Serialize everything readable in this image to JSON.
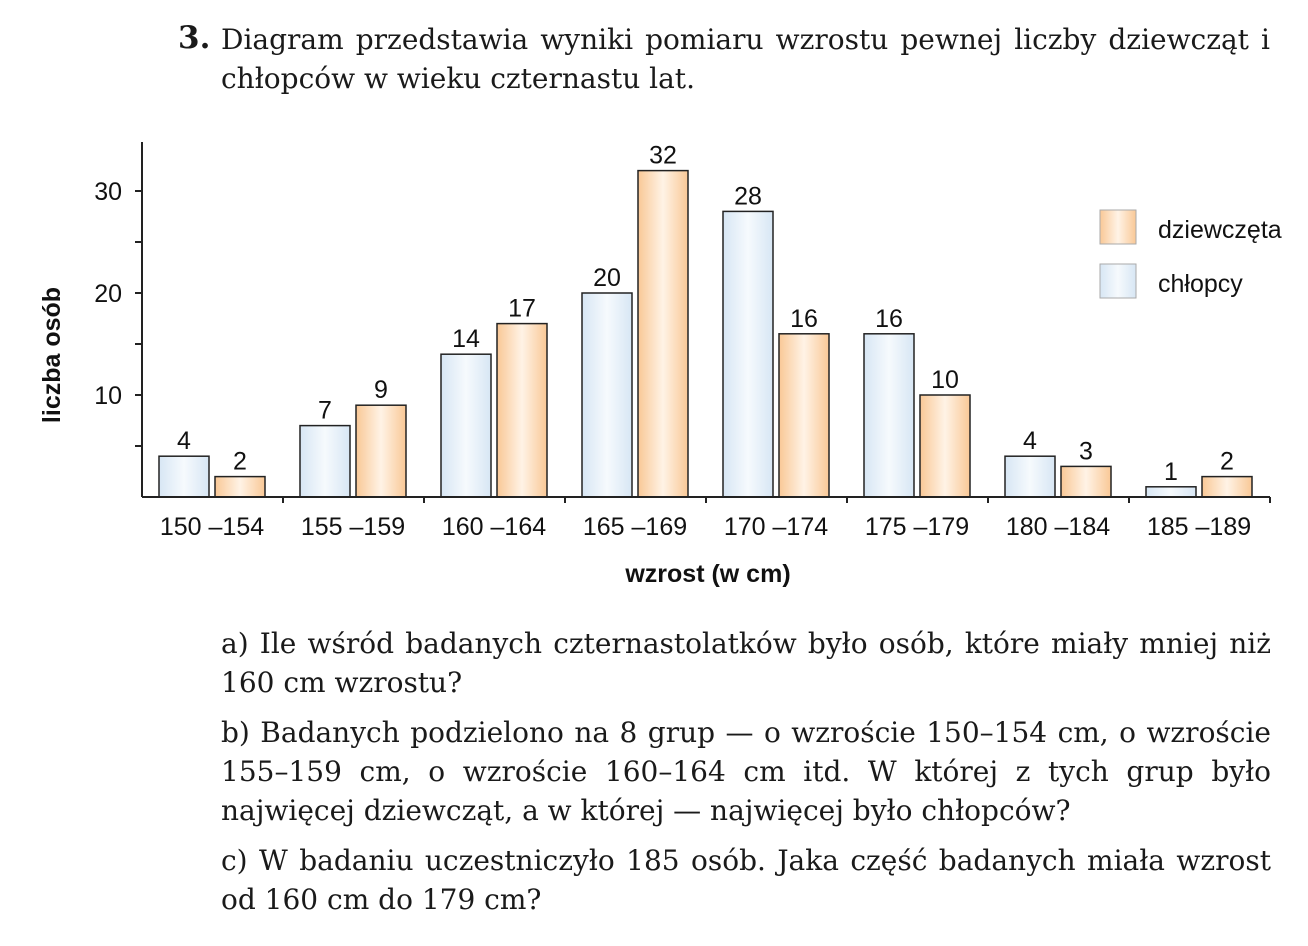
{
  "problem": {
    "number": "3.",
    "text": "Diagram przedstawia wyniki pomiaru wzrostu pewnej liczby dziewcząt i chłopców w wieku czternastu lat."
  },
  "chart_data": {
    "type": "bar",
    "xlabel": "wzrost (w cm)",
    "ylabel": "liczba osób",
    "ylim": [
      0,
      35
    ],
    "yticks": [
      10,
      20,
      30
    ],
    "categories": [
      "150 –154",
      "155 –159",
      "160 –164",
      "165 –169",
      "170 –174",
      "175 –179",
      "180 –184",
      "185 –189"
    ],
    "series": [
      {
        "name": "chłopcy",
        "values": [
          4,
          7,
          14,
          20,
          28,
          16,
          4,
          1
        ],
        "color": "#e3eef8"
      },
      {
        "name": "dziewczęta",
        "values": [
          2,
          9,
          17,
          32,
          16,
          10,
          3,
          2
        ],
        "color": "#fbd7b0"
      }
    ],
    "legend": "top-right",
    "legend_order": [
      "dziewczęta",
      "chłopcy"
    ],
    "grid": false
  },
  "questions": [
    "a) Ile wśród badanych czternastolatków było osób, które miały mniej niż 160 cm wzrostu?",
    "b) Badanych podzielono na 8 grup — o wzroście 150–154 cm, o wzroście 155–159 cm, o wzroście 160–164 cm itd. W której z tych grup było najwięcej dziewcząt, a w której — najwięcej było chłopców?",
    "c) W badaniu uczestniczyło 185 osób. Jaka część badanych miała wzrost od 160 cm do 179 cm?"
  ]
}
